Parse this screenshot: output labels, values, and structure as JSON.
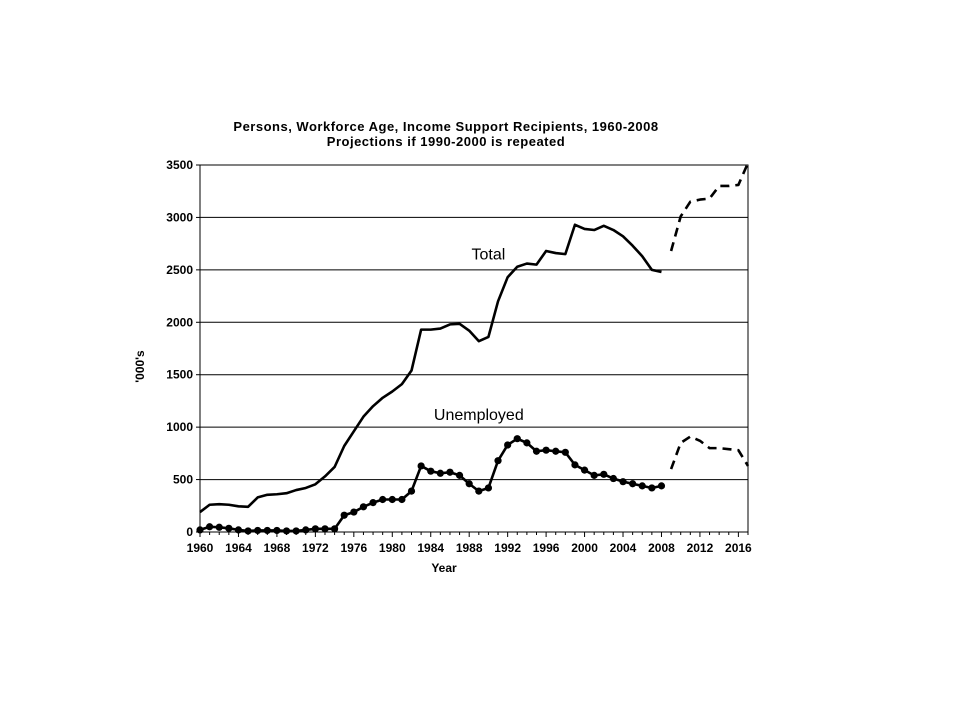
{
  "chart_data": {
    "type": "line",
    "title": "Persons, Workforce Age, Income Support Recipients, 1960-2008",
    "subtitle": "Projections if 1990-2000 is repeated",
    "xlabel": "Year",
    "ylabel": "'000's",
    "xlim": [
      1960,
      2017
    ],
    "ylim": [
      0,
      3500
    ],
    "x_ticks": [
      1960,
      1964,
      1968,
      1972,
      1976,
      1980,
      1984,
      1988,
      1992,
      1996,
      2000,
      2004,
      2008,
      2012,
      2016
    ],
    "y_ticks": [
      0,
      500,
      1000,
      1500,
      2000,
      2500,
      3000,
      3500
    ],
    "grid": "horizontal",
    "legend": "none",
    "annotations": [
      {
        "text": "Total",
        "x": 1990,
        "y": 2600
      },
      {
        "text": "Unemployed",
        "x": 1989,
        "y": 1070
      }
    ],
    "series": [
      {
        "style": "solid",
        "x": [
          1960,
          1961,
          1962,
          1963,
          1964,
          1965,
          1966,
          1967,
          1968,
          1969,
          1970,
          1971,
          1972,
          1973,
          1974,
          1975,
          1976,
          1977,
          1978,
          1979,
          1980,
          1981,
          1982,
          1983,
          1984,
          1985,
          1986,
          1987,
          1988,
          1989,
          1990,
          1991,
          1992,
          1993,
          1994,
          1995,
          1996,
          1997,
          1998,
          1999,
          2000,
          2001,
          2002,
          2003,
          2004,
          2005,
          2006,
          2007,
          2008
        ],
        "values": [
          190,
          260,
          265,
          260,
          245,
          240,
          330,
          355,
          360,
          370,
          400,
          420,
          455,
          530,
          620,
          820,
          960,
          1100,
          1200,
          1280,
          1340,
          1410,
          1540,
          1930,
          1930,
          1940,
          1980,
          1985,
          1920,
          1820,
          1860,
          2200,
          2430,
          2530,
          2560,
          2550,
          2680,
          2660,
          2650,
          2930,
          2890,
          2880,
          2920,
          2880,
          2820,
          2730,
          2630,
          2500,
          2480
        ],
        "markers": false
      },
      {
        "style": "solid",
        "x": [
          1960,
          1961,
          1962,
          1963,
          1964,
          1965,
          1966,
          1967,
          1968,
          1969,
          1970,
          1971,
          1972,
          1973,
          1974,
          1975,
          1976,
          1977,
          1978,
          1979,
          1980,
          1981,
          1982,
          1983,
          1984,
          1985,
          1986,
          1987,
          1988,
          1989,
          1990,
          1991,
          1992,
          1993,
          1994,
          1995,
          1996,
          1997,
          1998,
          1999,
          2000,
          2001,
          2002,
          2003,
          2004,
          2005,
          2006,
          2007,
          2008
        ],
        "values": [
          20,
          50,
          45,
          35,
          20,
          10,
          15,
          15,
          15,
          10,
          10,
          20,
          30,
          30,
          30,
          160,
          190,
          240,
          280,
          310,
          310,
          310,
          390,
          630,
          580,
          560,
          570,
          540,
          460,
          390,
          420,
          680,
          830,
          890,
          850,
          770,
          780,
          770,
          760,
          640,
          590,
          540,
          550,
          510,
          480,
          460,
          440,
          420,
          440
        ],
        "markers": true
      },
      {
        "style": "dashed",
        "x": [
          2009,
          2010,
          2011,
          2012,
          2013,
          2014,
          2015,
          2016,
          2017
        ],
        "values": [
          2680,
          3010,
          3150,
          3170,
          3180,
          3300,
          3300,
          3310,
          3520
        ],
        "markers": false
      },
      {
        "style": "dashed",
        "x": [
          2009,
          2010,
          2011,
          2012,
          2013,
          2014,
          2015,
          2016,
          2017
        ],
        "values": [
          600,
          850,
          910,
          870,
          800,
          800,
          790,
          780,
          630
        ],
        "markers": false
      }
    ]
  }
}
